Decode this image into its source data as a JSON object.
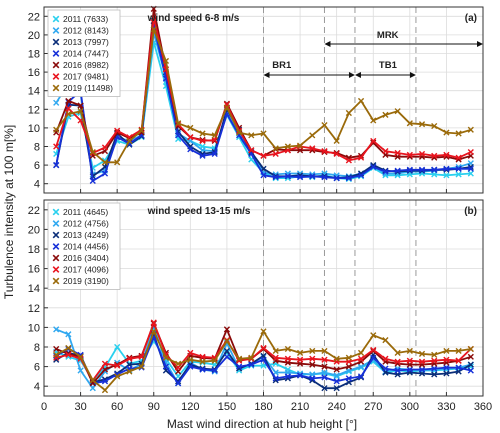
{
  "chart_data": [
    {
      "type": "line",
      "panel_label": "(a)",
      "caption": "wind speed 6-8 m/s",
      "x": [
        10,
        20,
        30,
        40,
        50,
        60,
        70,
        80,
        90,
        100,
        110,
        120,
        130,
        140,
        150,
        160,
        170,
        180,
        190,
        200,
        210,
        220,
        230,
        240,
        250,
        260,
        270,
        280,
        290,
        300,
        310,
        320,
        330,
        340,
        350
      ],
      "ylim": [
        3,
        23
      ],
      "yticks": [
        4,
        6,
        8,
        10,
        12,
        14,
        16,
        18,
        20,
        22
      ],
      "series": [
        {
          "name": "2011 (7633)",
          "color": "#2ad0ee",
          "marker": "x",
          "values": [
            7.2,
            11.2,
            11.6,
            5.7,
            6.5,
            8.6,
            8.2,
            9.0,
            19.2,
            14.5,
            8.8,
            8.6,
            8.0,
            7.8,
            11.4,
            9.0,
            6.6,
            5.2,
            4.6,
            4.6,
            4.8,
            4.7,
            4.9,
            4.6,
            4.5,
            4.8,
            5.7,
            4.9,
            4.9,
            5.0,
            5.1,
            5.0,
            4.9,
            5.0,
            5.1
          ]
        },
        {
          "name": "2012 (8143)",
          "color": "#30a8f0",
          "marker": "x",
          "values": [
            12.7,
            14.8,
            13.7,
            5.0,
            5.4,
            9.0,
            8.6,
            9.2,
            20.2,
            15.4,
            9.4,
            8.6,
            7.6,
            7.5,
            11.8,
            9.4,
            7.3,
            5.2,
            5.0,
            5.1,
            5.1,
            5.0,
            5.1,
            4.9,
            4.8,
            5.1,
            5.9,
            5.1,
            5.1,
            5.3,
            5.3,
            5.4,
            5.6,
            5.8,
            6.2
          ]
        },
        {
          "name": "2013 (7997)",
          "color": "#0a2d78",
          "marker": "x",
          "values": [
            6.0,
            12.5,
            12.4,
            4.8,
            5.8,
            9.4,
            8.2,
            9.1,
            21.5,
            16.0,
            9.6,
            8.0,
            7.2,
            7.4,
            12.0,
            9.8,
            7.4,
            5.6,
            4.8,
            4.8,
            4.9,
            4.8,
            4.8,
            4.6,
            4.7,
            5.1,
            6.0,
            5.4,
            5.3,
            5.4,
            5.4,
            5.5,
            5.5,
            5.6,
            5.8
          ]
        },
        {
          "name": "2014 (7447)",
          "color": "#1630d8",
          "marker": "x",
          "values": [
            6.0,
            12.8,
            14.0,
            4.3,
            5.1,
            9.0,
            8.3,
            9.2,
            21.0,
            15.3,
            9.2,
            7.7,
            7.0,
            7.2,
            11.5,
            9.2,
            7.2,
            4.9,
            4.7,
            4.8,
            4.7,
            4.8,
            4.7,
            4.6,
            4.6,
            4.9,
            5.8,
            5.3,
            5.4,
            5.5,
            5.5,
            5.5,
            5.6,
            5.6,
            5.6
          ]
        },
        {
          "name": "2016 (8982)",
          "color": "#8a0a0a",
          "marker": "x",
          "values": [
            9.5,
            12.9,
            12.4,
            7.0,
            7.5,
            9.5,
            8.9,
            9.5,
            22.8,
            16.3,
            10.2,
            9.0,
            8.7,
            8.6,
            12.6,
            10.0,
            7.6,
            7.0,
            7.7,
            7.6,
            7.6,
            7.6,
            7.4,
            7.3,
            6.8,
            7.0,
            8.4,
            7.1,
            6.9,
            6.9,
            6.9,
            6.8,
            6.9,
            6.6,
            7.0
          ]
        },
        {
          "name": "2017 (9481)",
          "color": "#e8141e",
          "marker": "x",
          "values": [
            8.0,
            12.1,
            10.8,
            7.3,
            7.9,
            9.7,
            9.0,
            9.8,
            21.8,
            16.3,
            10.4,
            9.0,
            8.6,
            8.7,
            12.5,
            9.7,
            7.6,
            7.0,
            7.2,
            7.6,
            8.0,
            7.8,
            7.5,
            7.2,
            6.5,
            6.8,
            8.6,
            7.5,
            7.3,
            7.1,
            7.2,
            7.0,
            7.1,
            6.8,
            7.4
          ]
        },
        {
          "name": "2019 (11498)",
          "color": "#9a6a0a",
          "marker": "x",
          "values": [
            9.8,
            11.5,
            11.8,
            7.4,
            6.3,
            6.3,
            8.6,
            9.7,
            20.6,
            17.2,
            10.5,
            10.0,
            9.4,
            9.2,
            12.2,
            9.5,
            9.2,
            9.4,
            7.8,
            8.0,
            8.1,
            9.2,
            10.3,
            8.6,
            11.6,
            12.9,
            10.8,
            11.4,
            11.8,
            10.5,
            10.4,
            10.2,
            9.5,
            9.4,
            9.8
          ]
        }
      ],
      "annotations": {
        "mrk": {
          "label": "MRK",
          "from": 230,
          "to": 360
        },
        "br1": {
          "label": "BR1",
          "from": 180,
          "to": 255
        },
        "tb1": {
          "label": "TB1",
          "from": 255,
          "to": 305
        }
      }
    },
    {
      "type": "line",
      "panel_label": "(b)",
      "caption": "wind speed 13-15 m/s",
      "x": [
        10,
        20,
        30,
        40,
        50,
        60,
        70,
        80,
        90,
        100,
        110,
        120,
        130,
        140,
        150,
        160,
        170,
        180,
        190,
        200,
        210,
        220,
        230,
        240,
        250,
        260,
        270,
        280,
        290,
        300,
        310,
        320,
        330,
        340,
        350
      ],
      "ylim": [
        3,
        23
      ],
      "yticks": [
        4,
        6,
        8,
        10,
        12,
        14,
        16,
        18,
        20,
        22
      ],
      "series": [
        {
          "name": "2011 (4645)",
          "color": "#2ad0ee",
          "marker": "x",
          "values": [
            7.5,
            7.0,
            6.6,
            4.6,
            5.9,
            8.0,
            6.3,
            6.6,
            8.6,
            6.8,
            5.0,
            6.5,
            6.4,
            6.2,
            7.4,
            5.6,
            6.1,
            6.1,
            6.3,
            5.7,
            5.2,
            5.2,
            5.3,
            5.0,
            5.5,
            5.9,
            6.5,
            5.4,
            5.6,
            5.5,
            5.6,
            5.6,
            5.7,
            5.8,
            6.0
          ]
        },
        {
          "name": "2012 (4756)",
          "color": "#30a8f0",
          "marker": "x",
          "values": [
            9.8,
            9.3,
            5.6,
            3.8,
            5.5,
            6.4,
            5.6,
            6.3,
            10.1,
            6.4,
            4.3,
            6.4,
            5.7,
            5.5,
            8.4,
            5.8,
            6.3,
            7.0,
            5.4,
            5.4,
            5.3,
            5.2,
            5.4,
            5.1,
            5.6,
            6.0,
            6.7,
            5.5,
            5.8,
            5.7,
            5.6,
            5.7,
            5.8,
            5.9,
            6.2
          ]
        },
        {
          "name": "2013 (4249)",
          "color": "#0a2d78",
          "marker": "x",
          "values": [
            6.7,
            7.4,
            7.1,
            4.4,
            4.7,
            5.3,
            6.2,
            6.3,
            9.3,
            5.6,
            4.5,
            6.2,
            5.8,
            5.7,
            7.6,
            5.8,
            6.3,
            7.1,
            4.6,
            4.8,
            5.1,
            4.6,
            3.8,
            3.8,
            4.4,
            4.9,
            7.2,
            5.4,
            5.2,
            5.4,
            5.3,
            5.2,
            5.3,
            5.5,
            6.2
          ]
        },
        {
          "name": "2014 (4456)",
          "color": "#1630d8",
          "marker": "x",
          "values": [
            7.1,
            7.8,
            7.2,
            4.3,
            4.5,
            5.2,
            5.8,
            5.9,
            9.0,
            6.0,
            4.3,
            6.0,
            5.7,
            5.6,
            7.0,
            6.0,
            6.2,
            6.7,
            4.8,
            5.0,
            5.1,
            4.8,
            4.9,
            4.5,
            4.8,
            5.0,
            6.9,
            5.8,
            5.6,
            5.7,
            5.7,
            5.8,
            5.9,
            5.9,
            5.6
          ]
        },
        {
          "name": "2016 (3404)",
          "color": "#8a0a0a",
          "marker": "x",
          "values": [
            7.8,
            7.3,
            7.0,
            4.3,
            5.7,
            6.2,
            6.9,
            7.1,
            10.4,
            7.4,
            5.5,
            7.1,
            6.9,
            6.8,
            9.8,
            6.7,
            6.8,
            7.8,
            6.6,
            6.4,
            6.3,
            6.2,
            6.0,
            5.7,
            6.0,
            6.5,
            7.6,
            6.5,
            6.3,
            6.2,
            6.2,
            6.3,
            6.4,
            6.6,
            7.0
          ]
        },
        {
          "name": "2017 (4096)",
          "color": "#e8141e",
          "marker": "x",
          "values": [
            6.9,
            7.2,
            6.8,
            4.6,
            6.3,
            6.1,
            6.8,
            7.0,
            10.5,
            7.2,
            5.9,
            7.4,
            7.0,
            6.9,
            8.7,
            6.6,
            6.8,
            7.9,
            6.9,
            6.8,
            6.7,
            6.8,
            6.7,
            6.5,
            6.5,
            6.8,
            7.7,
            6.8,
            6.5,
            6.6,
            6.5,
            6.6,
            6.7,
            6.6,
            7.8
          ]
        },
        {
          "name": "2019 (3190)",
          "color": "#9a6a0a",
          "marker": "x",
          "values": [
            7.2,
            7.9,
            7.0,
            4.6,
            3.6,
            5.0,
            5.5,
            6.0,
            9.6,
            6.9,
            6.3,
            6.7,
            6.5,
            6.6,
            8.6,
            6.8,
            6.9,
            9.6,
            7.6,
            7.8,
            7.4,
            7.6,
            7.6,
            6.8,
            6.9,
            7.4,
            9.2,
            8.7,
            7.4,
            7.6,
            7.3,
            7.2,
            7.6,
            7.6,
            7.8
          ]
        }
      ],
      "annotations": {}
    }
  ],
  "axes": {
    "xlabel": "Mast wind direction at hub height [°]",
    "ylabel": "Turbulence intensity at 100 m[%]",
    "xlim": [
      0,
      360
    ],
    "xticks": [
      0,
      30,
      60,
      90,
      120,
      150,
      180,
      210,
      240,
      270,
      300,
      330,
      360
    ],
    "vlines": [
      180,
      230,
      255,
      305
    ],
    "grid": true,
    "legend_position": "top-left"
  },
  "colors": {
    "grid": "#dcdcdc",
    "frame": "#333333",
    "vline": "#9a9a9a"
  }
}
